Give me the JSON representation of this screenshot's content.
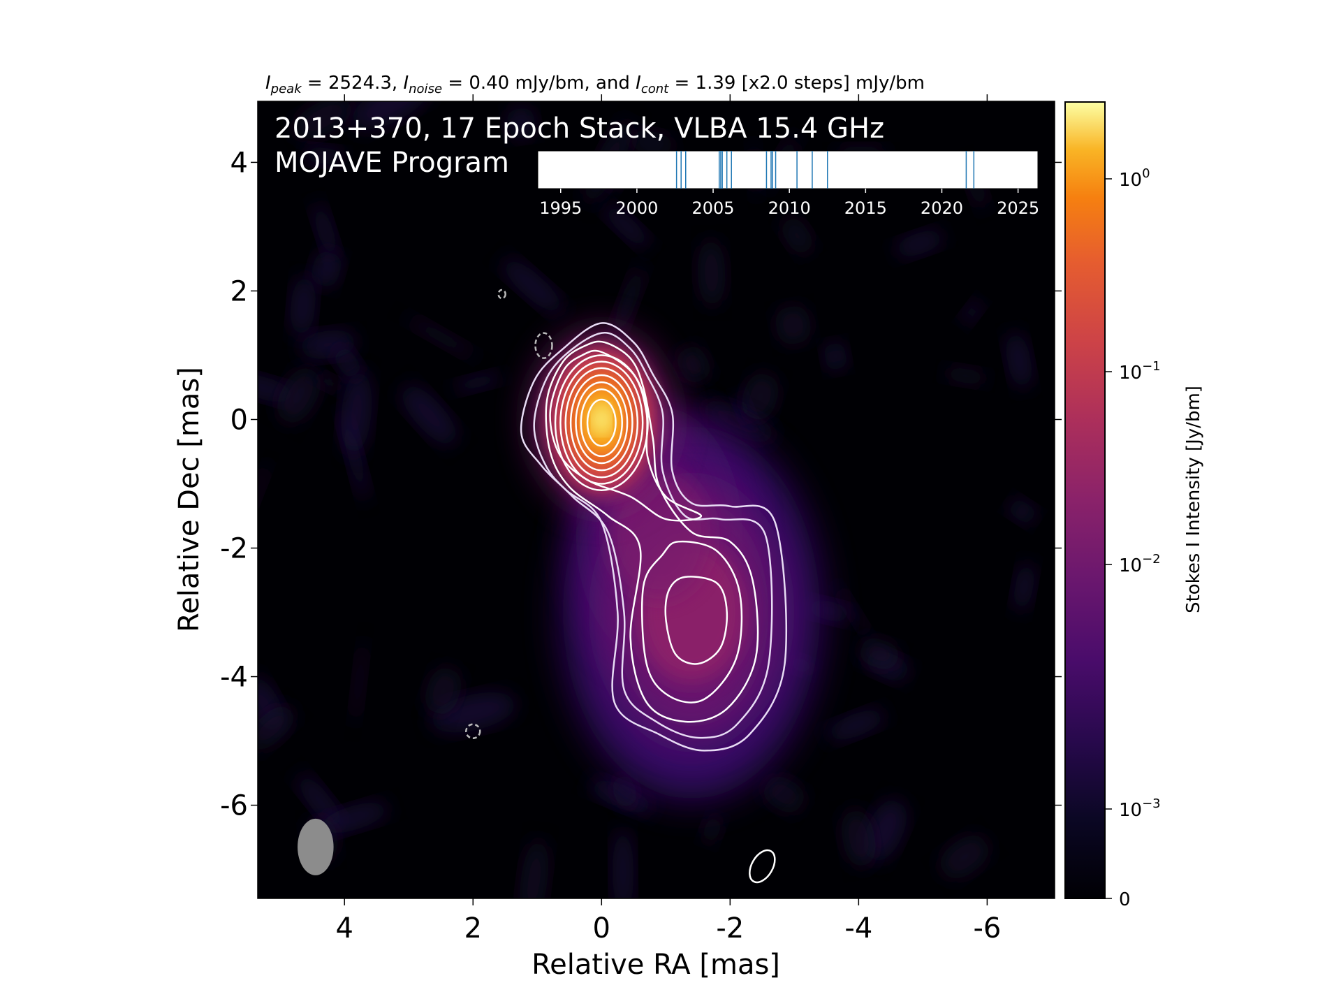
{
  "chart_data": {
    "type": "heatmap",
    "subtitle": {
      "peak_symbol": "I",
      "peak_sub": "peak",
      "peak_value": " = 2524.3, ",
      "noise_symbol": "I",
      "noise_sub": "noise",
      "noise_value": " = 0.40 mJy/bm, and ",
      "cont_symbol": "I",
      "cont_sub": "cont",
      "cont_value": " = 1.39 [x2.0 steps] mJy/bm"
    },
    "title_line1": "2013+370, 17 Epoch Stack, VLBA 15.4 GHz",
    "title_line2": "MOJAVE Program",
    "xlabel": "Relative RA [mas]",
    "ylabel": "Relative Dec [mas]",
    "xlim": [
      5.35,
      -7.05
    ],
    "ylim": [
      -7.45,
      4.95
    ],
    "xticks": [
      4,
      2,
      0,
      -2,
      -4,
      -6
    ],
    "xtick_labels": [
      "4",
      "2",
      "0",
      "-2",
      "-4",
      "-6"
    ],
    "yticks": [
      4,
      2,
      0,
      -2,
      -4,
      -6
    ],
    "ytick_labels": [
      "4",
      "2",
      "0",
      "-2",
      "-4",
      "-6"
    ],
    "peak_intensity_mJy_per_beam": 2524.3,
    "noise_mJy_per_beam": 0.4,
    "contour_base_mJy_per_beam": 1.39,
    "contour_step_factor": 2.0,
    "components": [
      {
        "ra": 0.0,
        "dec": 0.0,
        "peak_Jy": 2.52
      },
      {
        "ra": -1.4,
        "dec": -3.0,
        "peak_Jy": 0.025
      },
      {
        "ra": -0.9,
        "dec": -1.8,
        "peak_Jy": 0.05
      }
    ],
    "beam": {
      "ra": 4.45,
      "dec": -6.65,
      "major_mas": 0.88,
      "minor_mas": 0.56,
      "pa_deg": 0
    },
    "colorbar": {
      "label": "Stokes I Intensity [Jy/bm]",
      "colormap": "inferno",
      "scale": "log",
      "ticks": [
        {
          "value": 1.0,
          "base": "10",
          "exp": "0"
        },
        {
          "value": 0.1,
          "base": "10",
          "exp": "−1"
        },
        {
          "value": 0.01,
          "base": "10",
          "exp": "−2"
        },
        {
          "value": 0.001,
          "base": "10",
          "exp": "−3"
        },
        {
          "value": 0,
          "base": "0",
          "exp": ""
        }
      ]
    },
    "epoch_timeline": {
      "xlim": [
        1993.5,
        2026.3
      ],
      "ticks": [
        1995,
        2000,
        2005,
        2010,
        2015,
        2020,
        2025
      ],
      "tick_labels": [
        "1995",
        "2000",
        "2005",
        "2010",
        "2015",
        "2020",
        "2025"
      ],
      "epochs": [
        2002.6,
        2002.9,
        2003.2,
        2005.4,
        2005.5,
        2005.9,
        2006.2,
        2008.5,
        2008.8,
        2009.1,
        2010.5,
        2011.5,
        2012.5,
        2021.6,
        2022.1,
        2005.6,
        2008.9
      ],
      "line_color": "#1f77b4"
    },
    "colors": {
      "background": "#000004",
      "contour": "#ffffff",
      "beam": "#8c8c8c"
    }
  }
}
